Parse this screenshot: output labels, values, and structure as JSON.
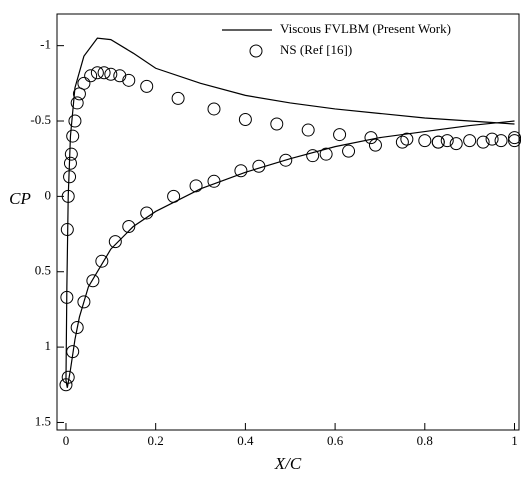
{
  "chart_data": {
    "type": "line",
    "xlabel": "X/C",
    "ylabel": "CP",
    "xlim": [
      -0.02,
      1.01
    ],
    "ylim": [
      -1.21,
      1.55
    ],
    "y_inverted": true,
    "xticks": [
      0,
      0.2,
      0.4,
      0.6,
      0.8,
      1
    ],
    "yticks": [
      -1,
      -0.5,
      0,
      0.5,
      1,
      1.5
    ],
    "legend": "upper right",
    "series": [
      {
        "name": "Viscous FVLBM (Present Work)",
        "color": "#000000",
        "style": "line",
        "x": [
          1.0,
          0.9,
          0.8,
          0.7,
          0.6,
          0.5,
          0.4,
          0.3,
          0.2,
          0.15,
          0.1,
          0.07,
          0.04,
          0.02,
          0.01,
          0.005,
          0.002,
          0.0,
          0.003,
          0.01,
          0.02,
          0.03,
          0.05,
          0.08,
          0.1,
          0.15,
          0.2,
          0.3,
          0.4,
          0.5,
          0.6,
          0.7,
          0.8,
          0.9,
          1.0
        ],
        "values": [
          -0.48,
          -0.5,
          -0.52,
          -0.55,
          -0.58,
          -0.62,
          -0.67,
          -0.75,
          -0.85,
          -0.95,
          -1.04,
          -1.05,
          -0.93,
          -0.72,
          -0.4,
          0,
          0.6,
          1.22,
          1.27,
          1.15,
          0.95,
          0.8,
          0.6,
          0.45,
          0.35,
          0.2,
          0.1,
          -0.05,
          -0.16,
          -0.25,
          -0.33,
          -0.39,
          -0.43,
          -0.47,
          -0.5
        ]
      },
      {
        "name": "NS (Ref [16])",
        "color": "#000000",
        "style": "marker",
        "x": [
          0.003,
          0.005,
          0.008,
          0.01,
          0.012,
          0.015,
          0.02,
          0.025,
          0.03,
          0.04,
          0.055,
          0.07,
          0.085,
          0.1,
          0.12,
          0.14,
          0.18,
          0.25,
          0.33,
          0.4,
          0.47,
          0.54,
          0.61,
          0.68,
          0.76,
          0.83,
          0.87,
          0.93,
          0.97,
          1.0,
          0.0,
          0.002,
          0.005,
          0.015,
          0.025,
          0.04,
          0.06,
          0.08,
          0.11,
          0.14,
          0.18,
          0.24,
          0.29,
          0.33,
          0.39,
          0.43,
          0.49,
          0.55,
          0.58,
          0.63,
          0.69,
          0.75,
          0.8,
          0.83,
          0.85,
          0.9,
          0.95,
          1.0
        ],
        "values": [
          0.22,
          0.0,
          -0.13,
          -0.22,
          -0.28,
          -0.4,
          -0.5,
          -0.62,
          -0.68,
          -0.75,
          -0.8,
          -0.82,
          -0.82,
          -0.81,
          -0.8,
          -0.77,
          -0.73,
          -0.65,
          -0.58,
          -0.51,
          -0.48,
          -0.44,
          -0.41,
          -0.39,
          -0.38,
          -0.36,
          -0.35,
          -0.36,
          -0.37,
          -0.39,
          1.25,
          0.67,
          1.2,
          1.03,
          0.87,
          0.7,
          0.56,
          0.43,
          0.3,
          0.2,
          0.11,
          0.0,
          -0.07,
          -0.1,
          -0.17,
          -0.2,
          -0.24,
          -0.27,
          -0.28,
          -0.3,
          -0.34,
          -0.36,
          -0.37,
          -0.36,
          -0.37,
          -0.37,
          -0.38,
          -0.37
        ]
      }
    ]
  }
}
